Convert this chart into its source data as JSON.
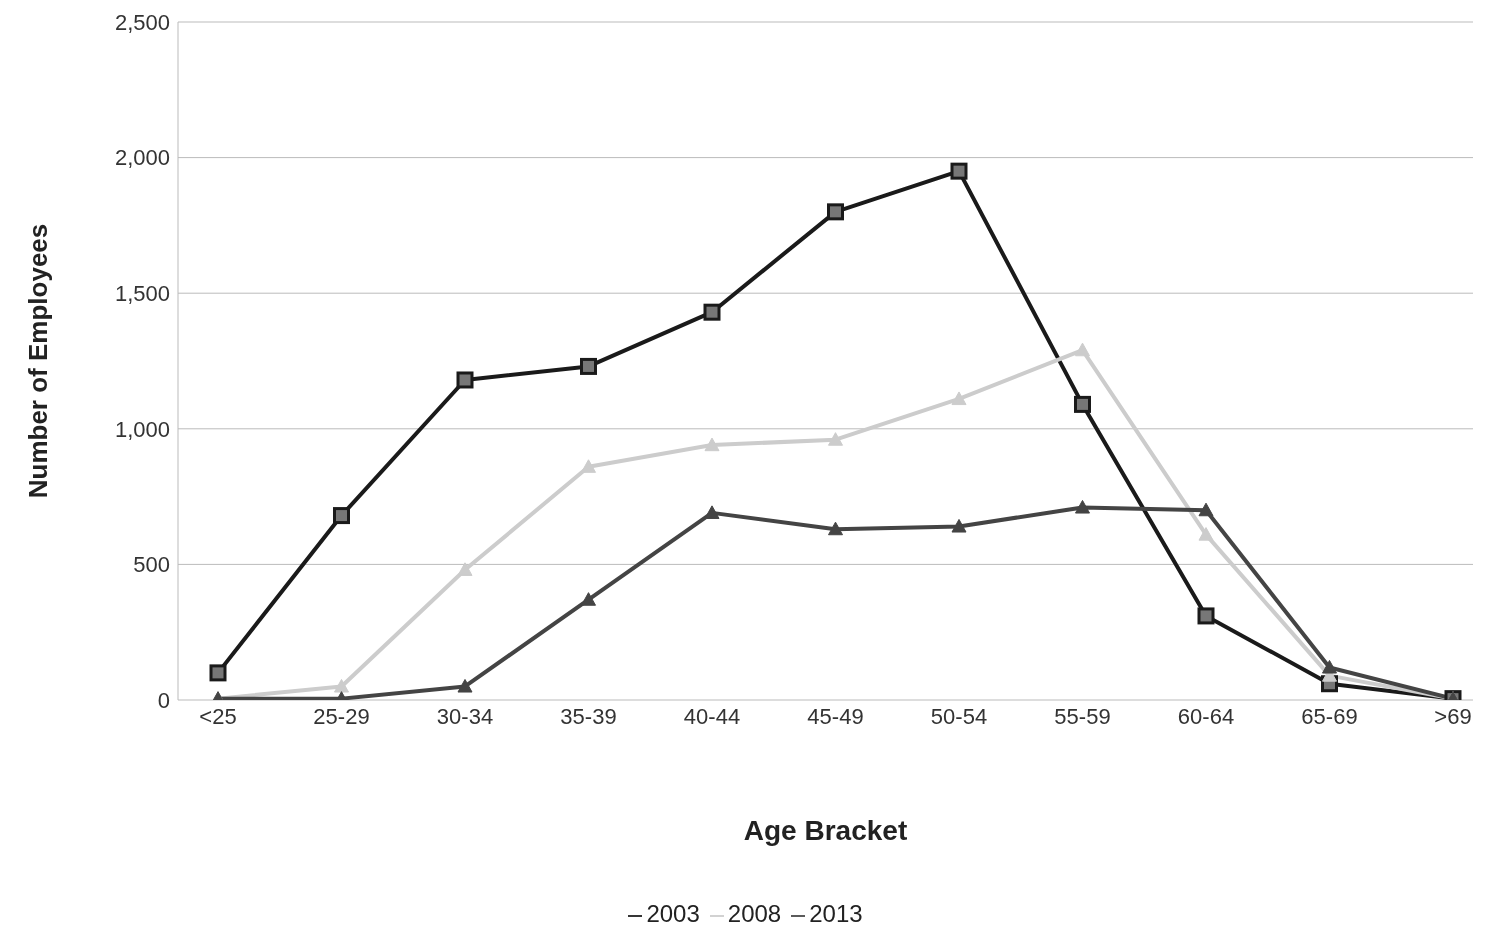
{
  "chart_data": {
    "type": "line",
    "xlabel": "Age Bracket",
    "ylabel": "Number of Employees",
    "categories": [
      "<25",
      "25-29",
      "30-34",
      "35-39",
      "40-44",
      "45-49",
      "50-54",
      "55-59",
      "60-64",
      "65-69",
      ">69"
    ],
    "series": [
      {
        "name": "2003",
        "color": "#1a1a1a",
        "marker": "square",
        "values": [
          100,
          680,
          1180,
          1230,
          1430,
          1800,
          1950,
          1090,
          310,
          60,
          5
        ]
      },
      {
        "name": "2008",
        "color": "#cccccc",
        "marker": "triangle",
        "values": [
          5,
          50,
          480,
          860,
          940,
          960,
          1110,
          1290,
          610,
          90,
          5
        ]
      },
      {
        "name": "2013",
        "color": "#444444",
        "marker": "triangle",
        "values": [
          5,
          5,
          50,
          370,
          690,
          630,
          640,
          710,
          700,
          120,
          5
        ]
      }
    ],
    "ylim": [
      0,
      2500
    ],
    "yticks": [
      {
        "value": 0,
        "label": "0"
      },
      {
        "value": 500,
        "label": "500"
      },
      {
        "value": 1000,
        "label": "1,000"
      },
      {
        "value": 1500,
        "label": "1,500"
      },
      {
        "value": 2000,
        "label": "2,000"
      },
      {
        "value": 2500,
        "label": "2,500"
      }
    ],
    "grid": "y",
    "legend": "bottom",
    "line_style": "solid"
  }
}
